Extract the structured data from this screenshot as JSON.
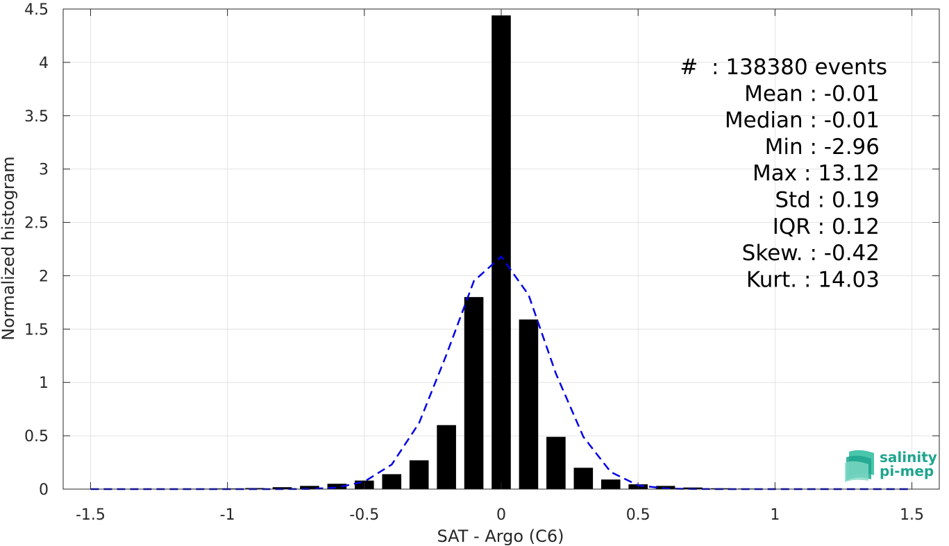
{
  "chart_data": {
    "type": "bar",
    "xlabel": "SAT - Argo (C6)",
    "ylabel": "Normalized histogram",
    "xlim": [
      -1.6,
      1.6
    ],
    "ylim": [
      0,
      4.5
    ],
    "xticks": [
      -1.5,
      -1,
      -0.5,
      0,
      0.5,
      1,
      1.5
    ],
    "xtick_labels": [
      "-1.5",
      "-1",
      "-0.5",
      "0",
      "0.5",
      "1",
      "1.5"
    ],
    "yticks": [
      0,
      0.5,
      1,
      1.5,
      2,
      2.5,
      3,
      3.5,
      4,
      4.5
    ],
    "ytick_labels": [
      "0",
      "0.5",
      "1",
      "1.5",
      "2",
      "2.5",
      "3",
      "3.5",
      "4",
      "4.5"
    ],
    "grid": true,
    "bar_color": "#000000",
    "bar_width": 0.07,
    "bars": {
      "x": [
        -1.5,
        -1.4,
        -1.3,
        -1.2,
        -1.1,
        -1.0,
        -0.9,
        -0.8,
        -0.7,
        -0.6,
        -0.5,
        -0.4,
        -0.3,
        -0.2,
        -0.1,
        0.0,
        0.1,
        0.2,
        0.3,
        0.4,
        0.5,
        0.6,
        0.7,
        0.8,
        0.9,
        1.0,
        1.1,
        1.2,
        1.3,
        1.4,
        1.5
      ],
      "y": [
        0.002,
        0.002,
        0.003,
        0.003,
        0.004,
        0.006,
        0.01,
        0.018,
        0.03,
        0.05,
        0.08,
        0.14,
        0.27,
        0.6,
        1.8,
        4.44,
        1.59,
        0.49,
        0.2,
        0.09,
        0.045,
        0.03,
        0.015,
        0.008,
        0.005,
        0.003,
        0.003,
        0.002,
        0.002,
        0.002,
        0.002
      ]
    },
    "series": [
      {
        "kind": "line",
        "style": "dashed",
        "color": "#0000e6",
        "x": [
          -1.5,
          -1.4,
          -1.3,
          -1.2,
          -1.1,
          -1.0,
          -0.9,
          -0.8,
          -0.7,
          -0.6,
          -0.5,
          -0.4,
          -0.3,
          -0.2,
          -0.1,
          0.0,
          0.1,
          0.2,
          0.3,
          0.4,
          0.5,
          0.6,
          0.7,
          0.8,
          0.9,
          1.0,
          1.1,
          1.2,
          1.3,
          1.4,
          1.5
        ],
        "y": [
          0,
          0,
          0,
          0,
          0,
          0,
          0,
          0,
          0.002,
          0.015,
          0.07,
          0.23,
          0.62,
          1.26,
          1.95,
          2.18,
          1.82,
          1.08,
          0.49,
          0.16,
          0.035,
          0.006,
          0.001,
          0,
          0,
          0,
          0,
          0,
          0,
          0,
          0
        ]
      }
    ],
    "stats": [
      "#  : 138380 events",
      "Mean : -0.01",
      "Median : -0.01",
      "Min : -2.96",
      "Max : 13.12",
      "Std : 0.19",
      "IQR : 0.12",
      "Skew. : -0.42",
      "Kurt. : 14.03"
    ]
  },
  "logo": {
    "line1": "salinity",
    "line2": "pi-mep",
    "color": "#1fa58e"
  }
}
